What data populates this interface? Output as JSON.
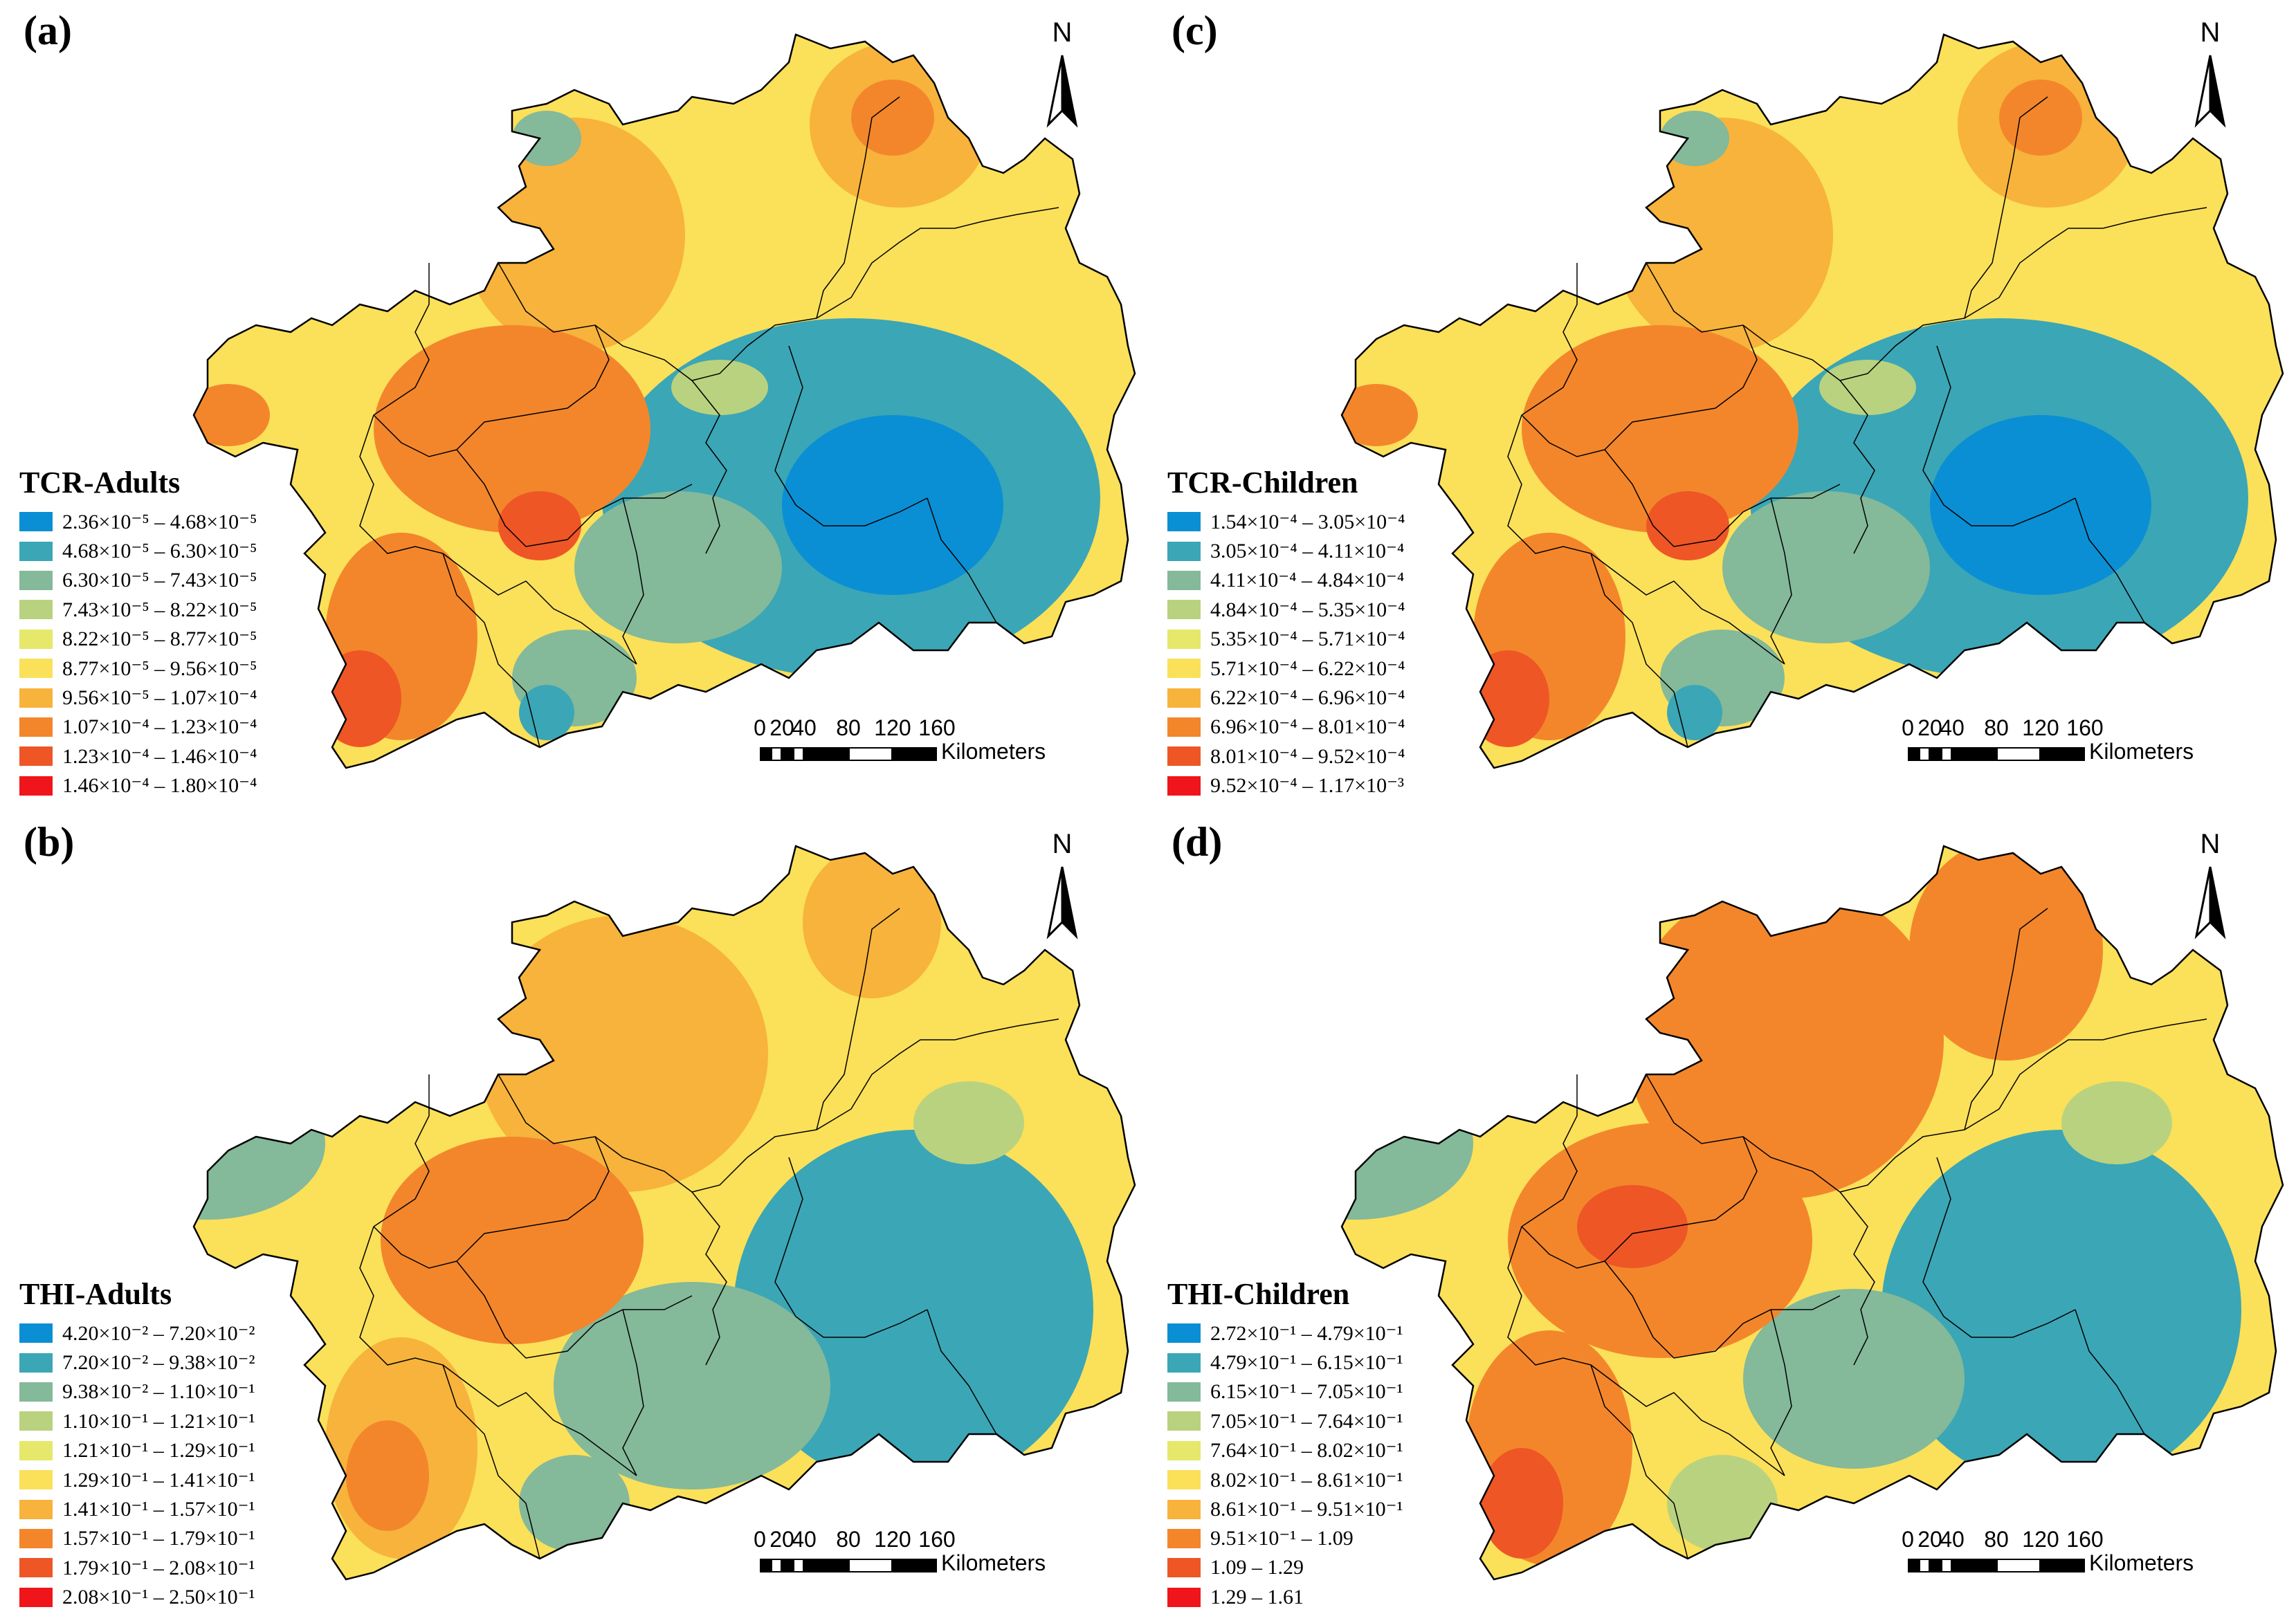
{
  "scale_bar": {
    "ticks": [
      "0",
      "20",
      "40",
      "80",
      "120",
      "160"
    ],
    "unit": "Kilometers"
  },
  "north_label": "N",
  "panels": [
    {
      "id": "a",
      "label": "(a)",
      "legend_title": "TCR-Adults",
      "class_labels": [
        "2.36×10⁻⁵ – 4.68×10⁻⁵",
        "4.68×10⁻⁵ – 6.30×10⁻⁵",
        "6.30×10⁻⁵ – 7.43×10⁻⁵",
        "7.43×10⁻⁵ – 8.22×10⁻⁵",
        "8.22×10⁻⁵ – 8.77×10⁻⁵",
        "8.77×10⁻⁵ – 9.56×10⁻⁵",
        "9.56×10⁻⁵ – 1.07×10⁻⁴",
        "1.07×10⁻⁴ – 1.23×10⁻⁴",
        "1.23×10⁻⁴ – 1.46×10⁻⁴",
        "1.46×10⁻⁴ – 1.80×10⁻⁴"
      ]
    },
    {
      "id": "c",
      "label": "(c)",
      "legend_title": "TCR-Children",
      "class_labels": [
        "1.54×10⁻⁴ – 3.05×10⁻⁴",
        "3.05×10⁻⁴ – 4.11×10⁻⁴",
        "4.11×10⁻⁴ – 4.84×10⁻⁴",
        "4.84×10⁻⁴ – 5.35×10⁻⁴",
        "5.35×10⁻⁴ – 5.71×10⁻⁴",
        "5.71×10⁻⁴ – 6.22×10⁻⁴",
        "6.22×10⁻⁴ – 6.96×10⁻⁴",
        "6.96×10⁻⁴ – 8.01×10⁻⁴",
        "8.01×10⁻⁴ – 9.52×10⁻⁴",
        "9.52×10⁻⁴ – 1.17×10⁻³"
      ]
    },
    {
      "id": "b",
      "label": "(b)",
      "legend_title": "THI-Adults",
      "class_labels": [
        "4.20×10⁻² – 7.20×10⁻²",
        "7.20×10⁻² – 9.38×10⁻²",
        "9.38×10⁻² – 1.10×10⁻¹",
        "1.10×10⁻¹ – 1.21×10⁻¹",
        "1.21×10⁻¹ – 1.29×10⁻¹",
        "1.29×10⁻¹ – 1.41×10⁻¹",
        "1.41×10⁻¹ – 1.57×10⁻¹",
        "1.57×10⁻¹ – 1.79×10⁻¹",
        "1.79×10⁻¹ – 2.08×10⁻¹",
        "2.08×10⁻¹ – 2.50×10⁻¹"
      ]
    },
    {
      "id": "d",
      "label": "(d)",
      "legend_title": "THI-Children",
      "class_labels": [
        "2.72×10⁻¹ – 4.79×10⁻¹",
        "4.79×10⁻¹ – 6.15×10⁻¹",
        "6.15×10⁻¹ – 7.05×10⁻¹",
        "7.05×10⁻¹ – 7.64×10⁻¹",
        "7.64×10⁻¹ – 8.02×10⁻¹",
        "8.02×10⁻¹ – 8.61×10⁻¹",
        "8.61×10⁻¹ – 9.51×10⁻¹",
        "9.51×10⁻¹ – 1.09",
        "1.09 – 1.29",
        "1.29 – 1.61"
      ]
    }
  ],
  "class_colors": [
    "#0a8fd4",
    "#3ba6b6",
    "#84b99a",
    "#b9d27f",
    "#e5e86a",
    "#fbe05a",
    "#f7b33b",
    "#f3862b",
    "#ee5626",
    "#f0151a"
  ]
}
